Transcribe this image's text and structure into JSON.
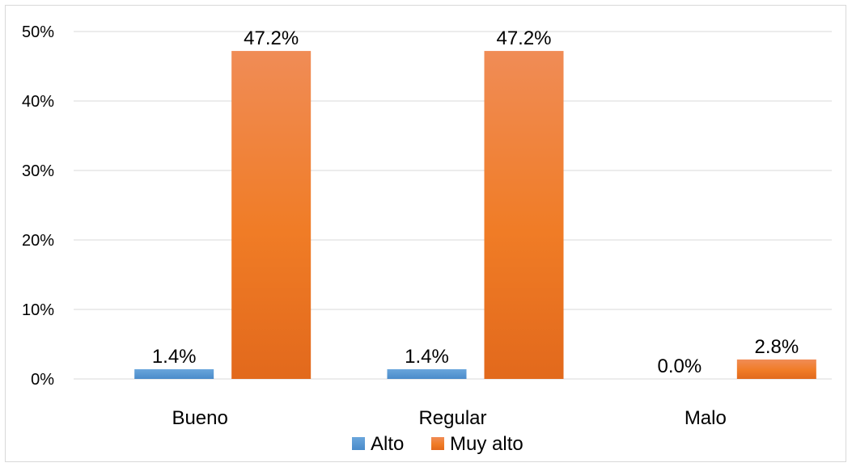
{
  "chart_data": {
    "type": "bar",
    "categories": [
      "Bueno",
      "Regular",
      "Malo"
    ],
    "series": [
      {
        "name": "Alto",
        "values": [
          1.4,
          1.4,
          0.0
        ],
        "labels": [
          "1.4%",
          "1.4%",
          "0.0%"
        ]
      },
      {
        "name": "Muy alto",
        "values": [
          47.2,
          47.2,
          2.8
        ],
        "labels": [
          "47.2%",
          "47.2%",
          "2.8%"
        ]
      }
    ],
    "yticks": [
      0,
      10,
      20,
      30,
      40,
      50
    ],
    "ytick_labels": [
      "0%",
      "10%",
      "20%",
      "30%",
      "40%",
      "50%"
    ],
    "ylim": [
      0,
      50
    ],
    "grid": true,
    "legend_position": "bottom",
    "colors": {
      "Alto": "#5b9bd5",
      "Muy alto": "#ed7d31",
      "grid": "#d9d9d9"
    }
  }
}
